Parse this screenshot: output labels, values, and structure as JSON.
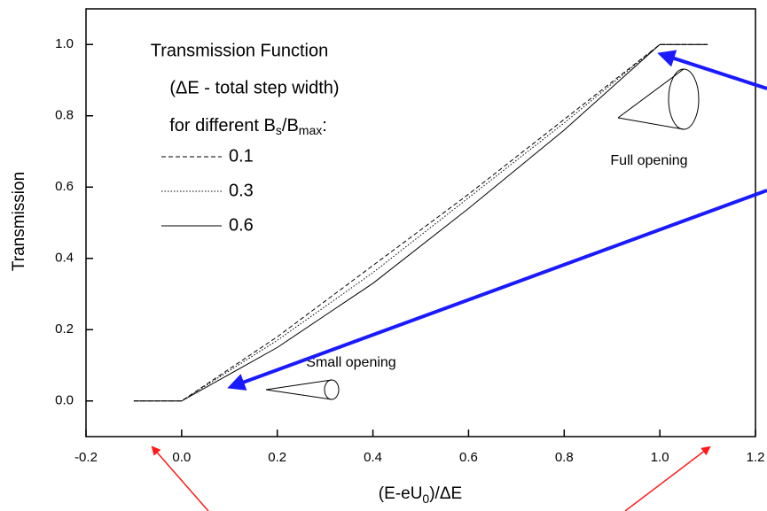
{
  "chart_data": {
    "type": "line",
    "annotations": {
      "legend_title": [
        "Transmission Function",
        "(ΔE - total step width)"
      ],
      "legend_subtitle": [
        "for different B",
        "s",
        "/B",
        "max",
        ":"
      ],
      "full_opening": "Full opening",
      "small_opening": "Small opening"
    },
    "x_label": [
      "(E-eU",
      "0",
      ")/ΔE"
    ],
    "y_label": "Transmission",
    "x": [
      -0.1,
      0,
      0.2,
      0.4,
      0.6,
      0.8,
      1.0,
      1.1
    ],
    "series": [
      {
        "name": "0.1",
        "color": "#000000",
        "linestyle": "dashed",
        "values": [
          0,
          0,
          0.18,
          0.38,
          0.58,
          0.79,
          1.0,
          1.0
        ]
      },
      {
        "name": "0.3",
        "color": "#000000",
        "linestyle": "dotted",
        "values": [
          0,
          0,
          0.17,
          0.36,
          0.57,
          0.78,
          1.0,
          1.0
        ]
      },
      {
        "name": "0.6",
        "color": "#000000",
        "linestyle": "solid",
        "values": [
          0,
          0,
          0.15,
          0.33,
          0.54,
          0.76,
          1.0,
          1.0
        ]
      }
    ],
    "legend_color": "#e8231f",
    "xlim": [
      -0.2,
      1.2
    ],
    "ylim": [
      -0.1,
      1.1
    ],
    "xticks": [
      -0.2,
      {
        "value": 0,
        "label": "0.0"
      },
      0.2,
      0.4,
      0.6,
      0.8,
      {
        "value": 1,
        "label": "1.0"
      },
      1.2
    ],
    "yticks": [
      {
        "value": 0,
        "label": "0.0"
      },
      0.2,
      0.4,
      0.6,
      0.8,
      {
        "value": 1,
        "label": "1.0"
      }
    ]
  }
}
